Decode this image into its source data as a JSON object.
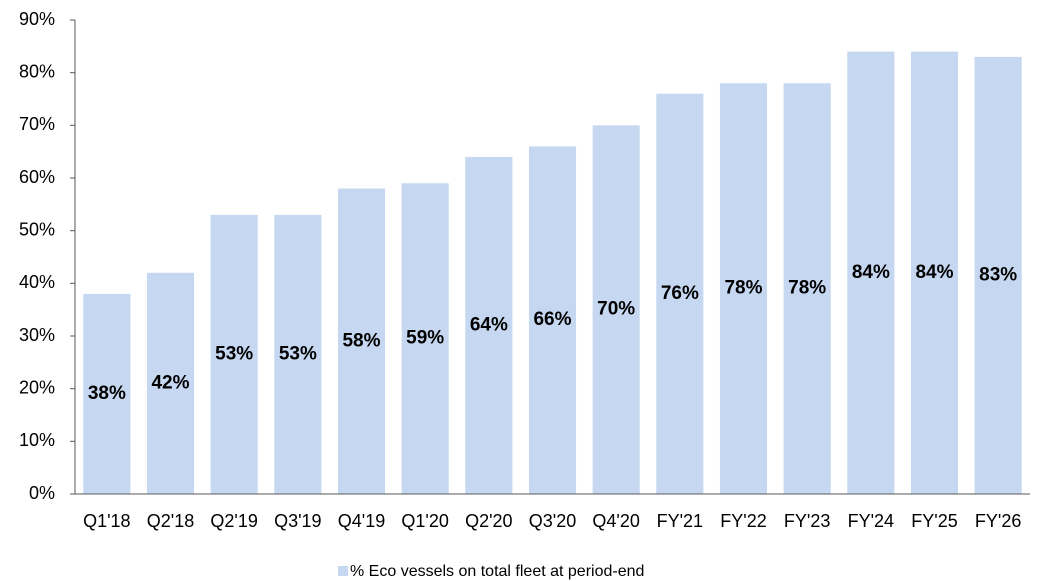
{
  "chart_data": {
    "type": "bar",
    "categories": [
      "Q1'18",
      "Q2'18",
      "Q2'19",
      "Q3'19",
      "Q4'19",
      "Q1'20",
      "Q2'20",
      "Q3'20",
      "Q4'20",
      "FY'21",
      "FY'22",
      "FY'23",
      "FY'24",
      "FY'25",
      "FY'26"
    ],
    "series": [
      {
        "name": "% Eco vessels on total fleet at period-end",
        "color": "#c6d8f1",
        "values": [
          38,
          42,
          53,
          53,
          58,
          59,
          64,
          66,
          70,
          76,
          78,
          78,
          84,
          84,
          83
        ],
        "value_labels": [
          "38%",
          "42%",
          "53%",
          "53%",
          "58%",
          "59%",
          "64%",
          "66%",
          "70%",
          "76%",
          "78%",
          "78%",
          "84%",
          "84%",
          "83%"
        ]
      }
    ],
    "ylim": [
      0,
      90
    ],
    "yticks": [
      {
        "value": 0,
        "label": "0%"
      },
      {
        "value": 10,
        "label": "10%"
      },
      {
        "value": 20,
        "label": "20%"
      },
      {
        "value": 30,
        "label": "30%"
      },
      {
        "value": 40,
        "label": "40%"
      },
      {
        "value": 50,
        "label": "50%"
      },
      {
        "value": 60,
        "label": "60%"
      },
      {
        "value": 70,
        "label": "70%"
      },
      {
        "value": 80,
        "label": "80%"
      },
      {
        "value": 90,
        "label": "90%"
      }
    ],
    "legend": "bottom"
  }
}
